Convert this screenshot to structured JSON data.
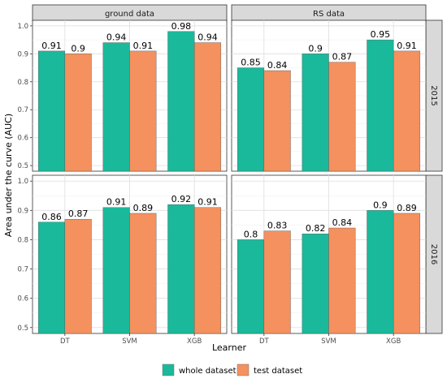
{
  "chart_data": {
    "type": "bar",
    "ylabel": "Area under the curve (AUC)",
    "xlabel": "Learner",
    "categories": [
      "DT",
      "SVM",
      "XGB"
    ],
    "facet_columns": [
      "ground data",
      "RS data"
    ],
    "facet_rows": [
      "2015",
      "2016"
    ],
    "ylim": [
      0.48,
      1.02
    ],
    "yticks": [
      "0.5",
      "0.6",
      "0.7",
      "0.8",
      "0.9",
      "1.0"
    ],
    "legend": {
      "position": "bottom",
      "entries": [
        {
          "name": "whole dataset",
          "color": "#1ab99b"
        },
        {
          "name": "test dataset",
          "color": "#f4915f"
        }
      ]
    },
    "panels": [
      {
        "column": "ground data",
        "row": "2015",
        "series": [
          {
            "name": "whole dataset",
            "values": [
              0.91,
              0.94,
              0.98
            ],
            "labels": [
              "0.91",
              "0.94",
              "0.98"
            ]
          },
          {
            "name": "test dataset",
            "values": [
              0.9,
              0.91,
              0.94
            ],
            "labels": [
              "0.9",
              "0.91",
              "0.94"
            ]
          }
        ]
      },
      {
        "column": "RS data",
        "row": "2015",
        "series": [
          {
            "name": "whole dataset",
            "values": [
              0.85,
              0.9,
              0.95
            ],
            "labels": [
              "0.85",
              "0.9",
              "0.95"
            ]
          },
          {
            "name": "test dataset",
            "values": [
              0.84,
              0.87,
              0.91
            ],
            "labels": [
              "0.84",
              "0.87",
              "0.91"
            ]
          }
        ]
      },
      {
        "column": "ground data",
        "row": "2016",
        "series": [
          {
            "name": "whole dataset",
            "values": [
              0.86,
              0.91,
              0.92
            ],
            "labels": [
              "0.86",
              "0.91",
              "0.92"
            ]
          },
          {
            "name": "test dataset",
            "values": [
              0.87,
              0.89,
              0.91
            ],
            "labels": [
              "0.87",
              "0.89",
              "0.91"
            ]
          }
        ]
      },
      {
        "column": "RS data",
        "row": "2016",
        "series": [
          {
            "name": "whole dataset",
            "values": [
              0.8,
              0.82,
              0.9
            ],
            "labels": [
              "0.8",
              "0.82",
              "0.9"
            ]
          },
          {
            "name": "test dataset",
            "values": [
              0.83,
              0.84,
              0.89
            ],
            "labels": [
              "0.83",
              "0.84",
              "0.89"
            ]
          }
        ]
      }
    ]
  }
}
